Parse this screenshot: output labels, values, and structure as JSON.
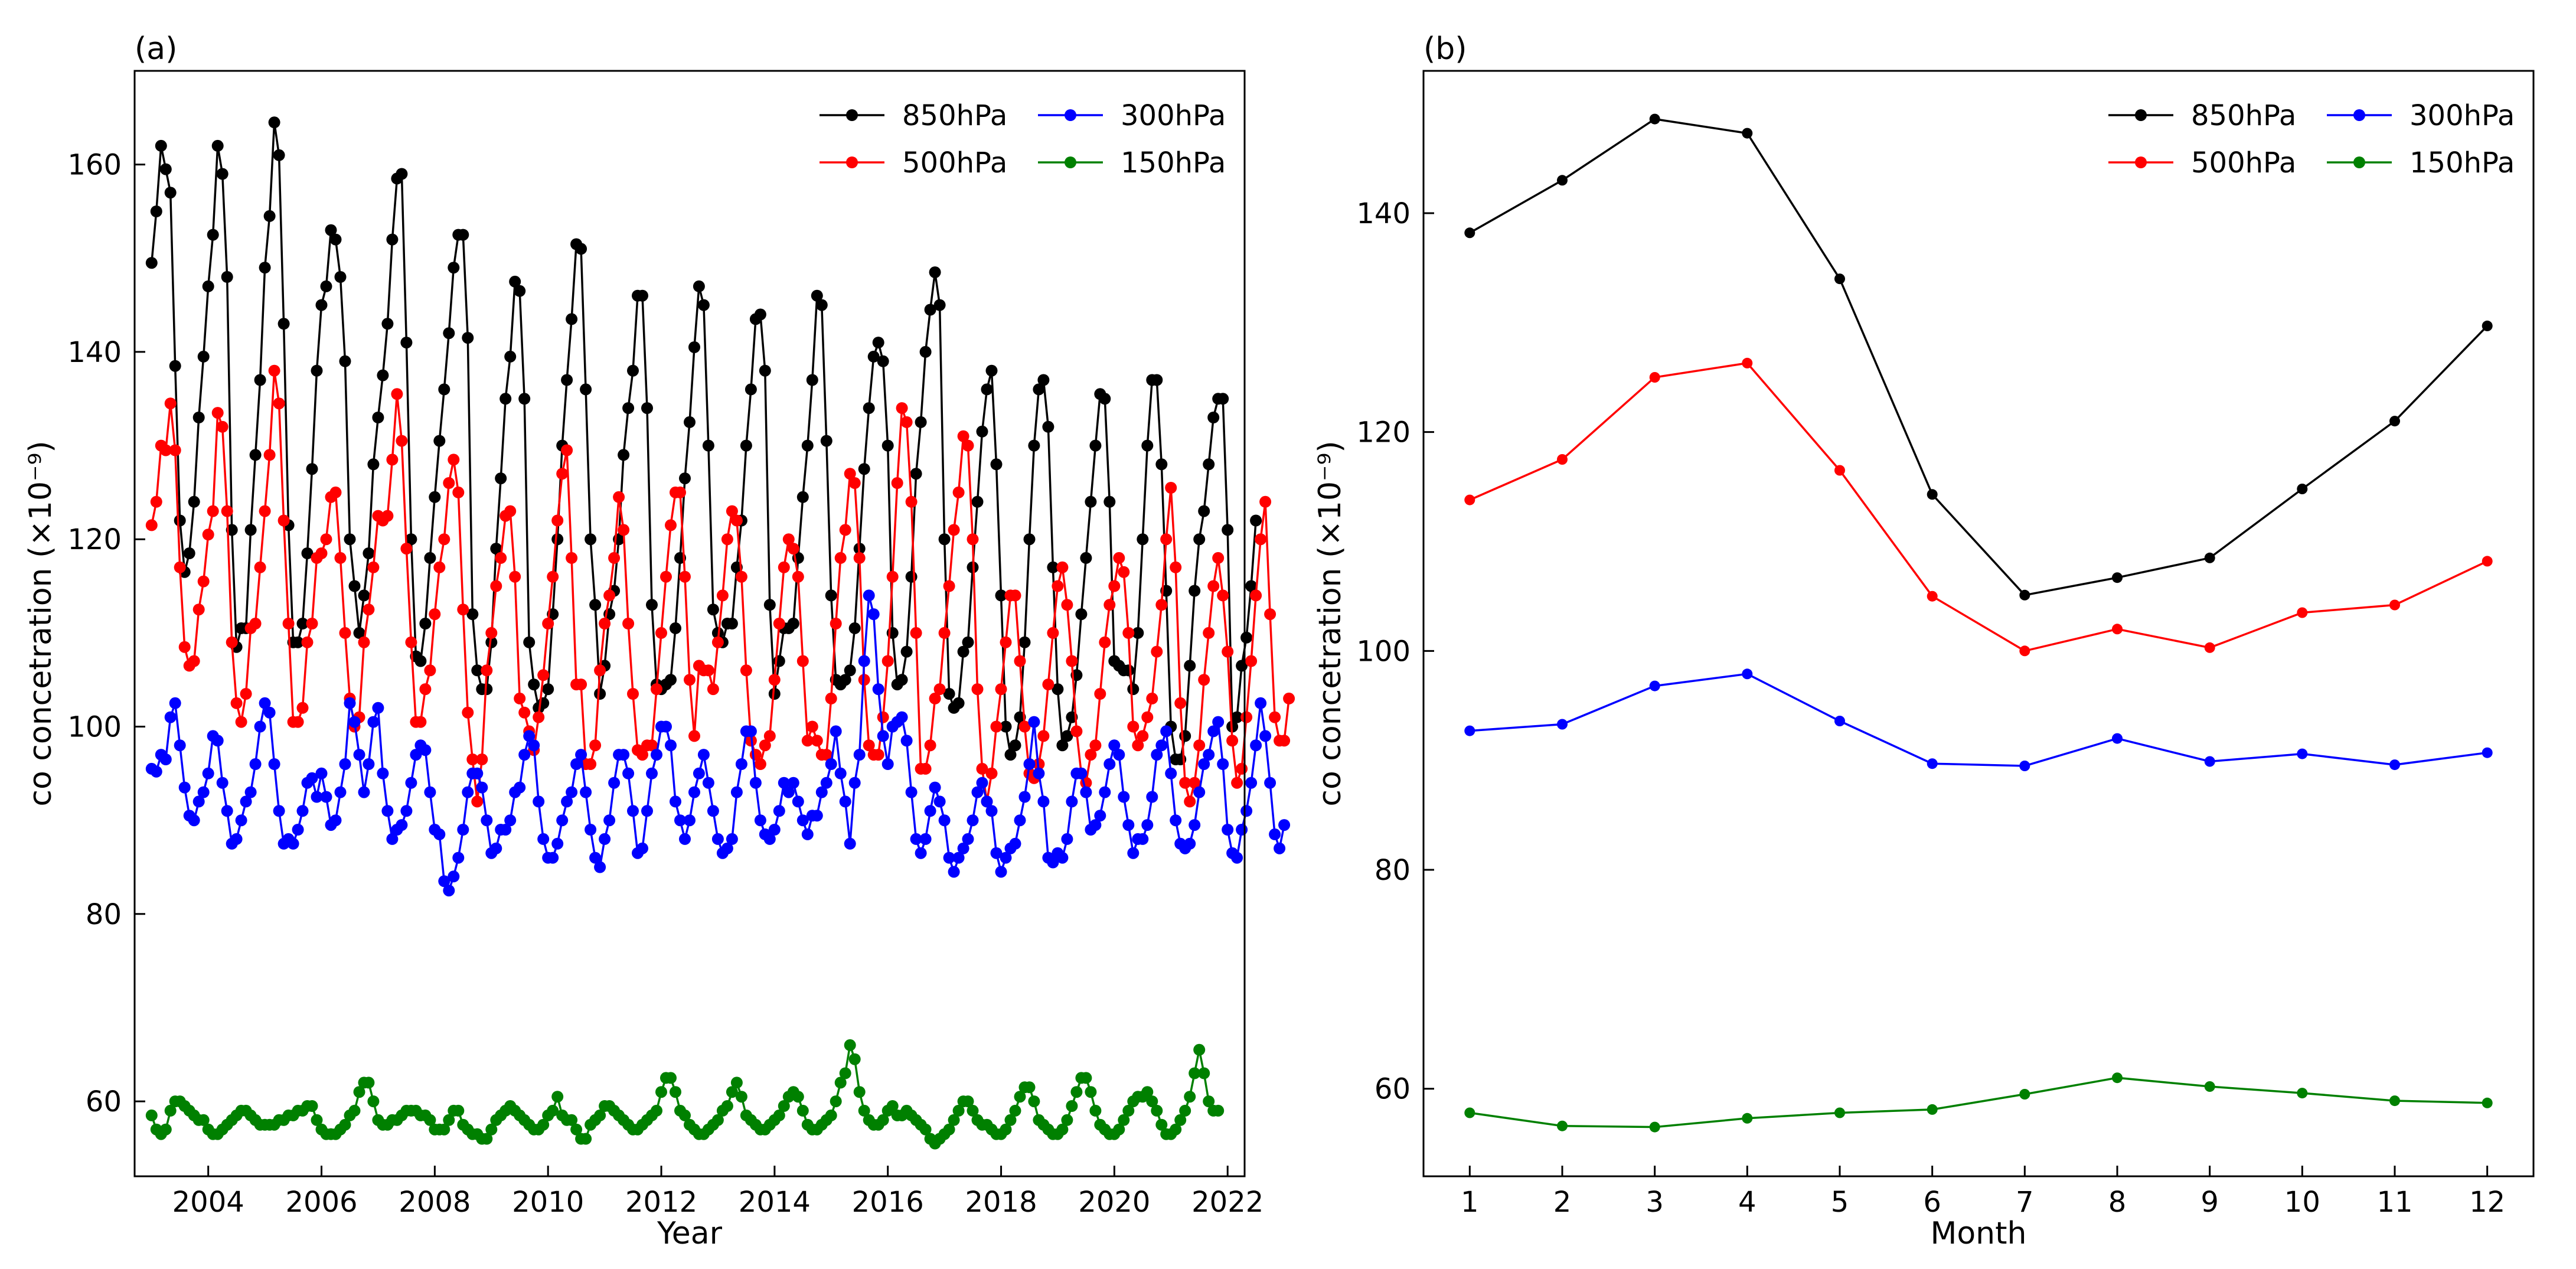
{
  "chart_data": [
    {
      "panel": "(a)",
      "type": "line",
      "xlabel": "Year",
      "ylabel": "co concetration (×10⁻⁹)",
      "xlim": [
        2002.7,
        2022.3
      ],
      "ylim": [
        52,
        170
      ],
      "xticks": [
        2004,
        2006,
        2008,
        2010,
        2012,
        2014,
        2016,
        2018,
        2020,
        2022
      ],
      "yticks": [
        60,
        80,
        100,
        120,
        140,
        160
      ],
      "x_start": 2003.0,
      "x_step": 0.08333,
      "legend_position": "top-right",
      "series": [
        {
          "name": "850hPa",
          "color": "#000000",
          "values": [
            149.5,
            155,
            162,
            159.5,
            157,
            138.5,
            122,
            116.5,
            118.5,
            124,
            133,
            139.5,
            147,
            152.5,
            162,
            159,
            148,
            121,
            108.5,
            110.5,
            110.5,
            121,
            129,
            137,
            149,
            154.5,
            164.5,
            161,
            143,
            121.5,
            109,
            109,
            111,
            118.5,
            127.5,
            138,
            145,
            147,
            153,
            152,
            148,
            139,
            120,
            115,
            110,
            114,
            118.5,
            128,
            133,
            137.5,
            143,
            152,
            158.5,
            159,
            141,
            120,
            107.5,
            107,
            111,
            118,
            124.5,
            130.5,
            136,
            142,
            149,
            152.5,
            152.5,
            141.5,
            112,
            106,
            104,
            104,
            109,
            119,
            126.5,
            135,
            139.5,
            147.5,
            146.5,
            135,
            109,
            104.5,
            102,
            102.5,
            104,
            112,
            120,
            130,
            137,
            143.5,
            151.5,
            151,
            136,
            120,
            113,
            103.5,
            106.5,
            112,
            114.5,
            120,
            129,
            134,
            138,
            146,
            146,
            134,
            113,
            104.5,
            104,
            104.5,
            105,
            110.5,
            118,
            126.5,
            132.5,
            140.5,
            147,
            145,
            130,
            112.5,
            110,
            109,
            111,
            111,
            117,
            122,
            130,
            136,
            143.5,
            144,
            138,
            113,
            103.5,
            107,
            110.5,
            110.5,
            111,
            118,
            124.5,
            130,
            137,
            146,
            145,
            130.5,
            114,
            105,
            104.5,
            105,
            106,
            110.5,
            119,
            127.5,
            134,
            139.5,
            141,
            139,
            130,
            110,
            104.5,
            105,
            108,
            116,
            127,
            132.5,
            140,
            144.5,
            148.5,
            145,
            120,
            103.5,
            102,
            102.5,
            108,
            109,
            117,
            124,
            131.5,
            136,
            138,
            128,
            114,
            100,
            97,
            98,
            101,
            109,
            120,
            130,
            136,
            137,
            132,
            117,
            104,
            98,
            99,
            101,
            105.5,
            112,
            118,
            124,
            130,
            135.5,
            135,
            124,
            107,
            106.5,
            106,
            106,
            104,
            110,
            120,
            130,
            137,
            137,
            128,
            114.5,
            100,
            96.5,
            96.5,
            99,
            106.5,
            114.5,
            120,
            123,
            128,
            133,
            135,
            135,
            121,
            100,
            101,
            106.5,
            109.5,
            115,
            122
          ]
        },
        {
          "name": "500hPa",
          "color": "#ff0000",
          "values": [
            121.5,
            124,
            130,
            129.5,
            134.5,
            129.5,
            117,
            108.5,
            106.5,
            107,
            112.5,
            115.5,
            120.5,
            123,
            133.5,
            132,
            123,
            109,
            102.5,
            100.5,
            103.5,
            110.5,
            111,
            117,
            123,
            129,
            138,
            134.5,
            122,
            111,
            100.5,
            100.5,
            102,
            109,
            111,
            118,
            118.5,
            120,
            124.5,
            125,
            118,
            110,
            103,
            100,
            101,
            109,
            112.5,
            117,
            122.5,
            122,
            122.5,
            128.5,
            135.5,
            130.5,
            119,
            109,
            100.5,
            100.5,
            104,
            106,
            112,
            117,
            120,
            126,
            128.5,
            125,
            112.5,
            101.5,
            96.5,
            92,
            96.5,
            106,
            110,
            115,
            118,
            122.5,
            123,
            116,
            103,
            101.5,
            99.5,
            97.5,
            101,
            105.5,
            111,
            116,
            122,
            127,
            129.5,
            118,
            104.5,
            104.5,
            96,
            96,
            98,
            106,
            111,
            114,
            118,
            124.5,
            121,
            111,
            103.5,
            97.5,
            97,
            98,
            98,
            104,
            110,
            116,
            121.5,
            125,
            125,
            116,
            105,
            99,
            106.5,
            106,
            106,
            104,
            109,
            114,
            120,
            123,
            122,
            116,
            106,
            98.5,
            97,
            96,
            98,
            99,
            105,
            111,
            117,
            120,
            119,
            116,
            107,
            98.5,
            100,
            98.5,
            97,
            97,
            103,
            111,
            118,
            121,
            127,
            126,
            118,
            105,
            98,
            97,
            97,
            101,
            107,
            116,
            126,
            134,
            132.5,
            124,
            110,
            95.5,
            95.5,
            98,
            103,
            104,
            110,
            115,
            121,
            125,
            131,
            130,
            120,
            104,
            95.5,
            92,
            95,
            100,
            104,
            109,
            114,
            114,
            107,
            100,
            95,
            94.5,
            96,
            99,
            104.5,
            110,
            115,
            117,
            113,
            107,
            99.5,
            95,
            94,
            97,
            98,
            103.5,
            109,
            113,
            115,
            118,
            116.5,
            110,
            100,
            98,
            99,
            101,
            103,
            108,
            113,
            120,
            125.5,
            117,
            102.5,
            94,
            92,
            94,
            98,
            105,
            110,
            115,
            118,
            114,
            108,
            98.5,
            94,
            95.5,
            101,
            107,
            114,
            120,
            124,
            112,
            101,
            98.5,
            98.5,
            103
          ]
        },
        {
          "name": "300hPa",
          "color": "#0000ff",
          "values": [
            95.5,
            95.2,
            97,
            96.5,
            101,
            102.5,
            98,
            93.5,
            90.5,
            90,
            92,
            93,
            95,
            99,
            98.5,
            94,
            91,
            87.5,
            88,
            90,
            92,
            93,
            96,
            100,
            102.5,
            101.5,
            96,
            91,
            87.5,
            88,
            87.5,
            89,
            91,
            94,
            94.5,
            92.5,
            95,
            92.5,
            89.5,
            90,
            93,
            96,
            102.5,
            100.5,
            97,
            93,
            96,
            100.5,
            102,
            95,
            91,
            88,
            89,
            89.5,
            91,
            94,
            97,
            98,
            97.5,
            93,
            89,
            88.5,
            83.5,
            82.5,
            84,
            86,
            89,
            93,
            95,
            95,
            93.5,
            90,
            86.5,
            87,
            89,
            89,
            90,
            93,
            93.5,
            97,
            99,
            98,
            92,
            88,
            86,
            86,
            87.5,
            90,
            92,
            93,
            96,
            97,
            93,
            89,
            86,
            85,
            88,
            90,
            94,
            97,
            97,
            95,
            91,
            86.5,
            87,
            91,
            95,
            97,
            100,
            100,
            98,
            92,
            90,
            88,
            90,
            93,
            95,
            97,
            94,
            91,
            88,
            86.5,
            87,
            88,
            93,
            96,
            99.5,
            99.5,
            94,
            90,
            88.5,
            88,
            89,
            91,
            94,
            93,
            94,
            92,
            90,
            88.5,
            90.5,
            90.5,
            93,
            94,
            96,
            99.5,
            95,
            92,
            87.5,
            94,
            97,
            107,
            114,
            112,
            104,
            99,
            96,
            100,
            100.5,
            101,
            98.5,
            93,
            88,
            86.5,
            88,
            91,
            93.5,
            92,
            90,
            86,
            84.5,
            86,
            87,
            88,
            90,
            93,
            94,
            92,
            91,
            86.5,
            84.5,
            86,
            87,
            87.5,
            90,
            92.5,
            96,
            100.5,
            95,
            92,
            86,
            85.5,
            86.5,
            86,
            88,
            92,
            95,
            95,
            93,
            89,
            89.5,
            90.5,
            93,
            96,
            98,
            97,
            92.5,
            89.5,
            86.5,
            88,
            88,
            89.5,
            92.5,
            97,
            98,
            99.5,
            95,
            90,
            87.5,
            87,
            87.5,
            89.5,
            93,
            96,
            97,
            99.5,
            100.5,
            96,
            89,
            86.5,
            86,
            89,
            91,
            94,
            98,
            102.5,
            99,
            94,
            88.5,
            87,
            89.5
          ]
        },
        {
          "name": "150hPa",
          "color": "#008000",
          "values": [
            58.5,
            57,
            56.5,
            57,
            59,
            60,
            60,
            59.5,
            59,
            58.5,
            58,
            58,
            57,
            56.5,
            56.5,
            57,
            57.5,
            58,
            58.5,
            59,
            59,
            58.5,
            58,
            57.5,
            57.5,
            57.5,
            57.5,
            58,
            58,
            58.5,
            58.5,
            59,
            59,
            59.5,
            59.5,
            58,
            57,
            56.5,
            56.5,
            56.5,
            57,
            57.5,
            58.5,
            59,
            61,
            62,
            62,
            60,
            58,
            57.5,
            57.5,
            58,
            58,
            58.5,
            59,
            59,
            59,
            58.5,
            58.5,
            58,
            57,
            57,
            57,
            58,
            59,
            59,
            57.5,
            57,
            56.5,
            56.5,
            56,
            56,
            57,
            58,
            58.5,
            59,
            59.5,
            59,
            58.5,
            58,
            57.5,
            57,
            57,
            57.5,
            58.5,
            59,
            60.5,
            58.5,
            58,
            58,
            57,
            56,
            56,
            57.5,
            58,
            58.5,
            59.5,
            59.5,
            59,
            58.5,
            58,
            57.5,
            57,
            57,
            57.5,
            58,
            58.5,
            59,
            61,
            62.5,
            62.5,
            61,
            59,
            58.5,
            57.5,
            57,
            56.5,
            56.5,
            57,
            57.5,
            58,
            59,
            59.5,
            61,
            62,
            60.5,
            58.5,
            58,
            57.5,
            57,
            57,
            57.5,
            58,
            58.5,
            59.5,
            60.5,
            61,
            60.5,
            59,
            57.5,
            57,
            57,
            57.5,
            58,
            58.5,
            60,
            62,
            63,
            66,
            64.5,
            61,
            59,
            58,
            57.5,
            57.5,
            58,
            59,
            59.5,
            58.5,
            58.5,
            59,
            58.5,
            58,
            57.5,
            57,
            56,
            55.5,
            56,
            56.5,
            57,
            58,
            59,
            60,
            60,
            59,
            58,
            57.5,
            57.5,
            57,
            56.5,
            56.5,
            57,
            58,
            59,
            60.5,
            61.5,
            61.5,
            60,
            58,
            57.5,
            57,
            56.5,
            56.5,
            57,
            58,
            59.5,
            61,
            62.5,
            62.5,
            61,
            59,
            57.5,
            57,
            56.5,
            56.5,
            57,
            58,
            59,
            60,
            60.5,
            60.5,
            61,
            60,
            59,
            57.5,
            56.5,
            56.5,
            57,
            58,
            59,
            60.5,
            63,
            65.5,
            63,
            60,
            59,
            59
          ]
        }
      ]
    },
    {
      "panel": "(b)",
      "type": "line",
      "xlabel": "Month",
      "ylabel": "co concetration (×10⁻⁹)",
      "xlim": [
        0.5,
        12.5
      ],
      "ylim": [
        52,
        153
      ],
      "xticks": [
        1,
        2,
        3,
        4,
        5,
        6,
        7,
        8,
        9,
        10,
        11,
        12
      ],
      "yticks": [
        60,
        80,
        100,
        120,
        140
      ],
      "legend_position": "top-right",
      "series": [
        {
          "name": "850hPa",
          "color": "#000000",
          "values": [
            138.2,
            143,
            148.6,
            147.3,
            134,
            114.3,
            105.1,
            106.7,
            108.5,
            114.8,
            121,
            129.7
          ]
        },
        {
          "name": "500hPa",
          "color": "#ff0000",
          "values": [
            113.8,
            117.5,
            125,
            126.3,
            116.5,
            105,
            100,
            102,
            100.3,
            103.5,
            104.2,
            108.2
          ]
        },
        {
          "name": "300hPa",
          "color": "#0000ff",
          "values": [
            92.7,
            93.3,
            96.8,
            97.9,
            93.6,
            89.7,
            89.5,
            92,
            89.9,
            90.6,
            89.6,
            90.7
          ]
        },
        {
          "name": "150hPa",
          "color": "#008000",
          "values": [
            57.8,
            56.6,
            56.5,
            57.3,
            57.8,
            58.1,
            59.5,
            61,
            60.2,
            59.6,
            58.9,
            58.7
          ]
        }
      ]
    }
  ]
}
